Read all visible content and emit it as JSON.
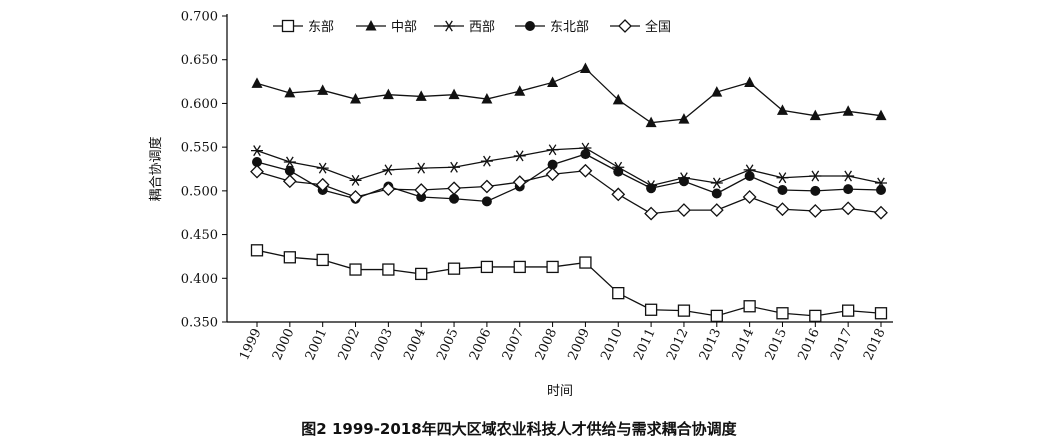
{
  "chart_data": {
    "type": "line",
    "title": "",
    "caption": "图2 1999-2018年四大区域农业科技人才供给与需求耦合协调度",
    "xlabel": "时间",
    "ylabel": "耦合协调度",
    "ylim": [
      0.35,
      0.7
    ],
    "yticks": [
      "0.350",
      "0.400",
      "0.450",
      "0.500",
      "0.550",
      "0.600",
      "0.650",
      "0.700"
    ],
    "categories": [
      "1999",
      "2000",
      "2001",
      "2002",
      "2003",
      "2004",
      "2005",
      "2006",
      "2007",
      "2008",
      "2009",
      "2010",
      "2011",
      "2012",
      "2013",
      "2014",
      "2015",
      "2016",
      "2017",
      "2018"
    ],
    "legend_position": "top",
    "grid": false,
    "series": [
      {
        "name": "东部",
        "marker": "square-open",
        "values": [
          0.432,
          0.424,
          0.421,
          0.41,
          0.41,
          0.405,
          0.411,
          0.413,
          0.413,
          0.413,
          0.418,
          0.383,
          0.364,
          0.363,
          0.357,
          0.368,
          0.36,
          0.357,
          0.363,
          0.36
        ]
      },
      {
        "name": "中部",
        "marker": "triangle-filled",
        "values": [
          0.623,
          0.612,
          0.615,
          0.605,
          0.61,
          0.608,
          0.61,
          0.605,
          0.614,
          0.624,
          0.64,
          0.604,
          0.578,
          0.582,
          0.613,
          0.624,
          0.592,
          0.586,
          0.591,
          0.586
        ]
      },
      {
        "name": "西部",
        "marker": "asterisk",
        "values": [
          0.546,
          0.533,
          0.526,
          0.512,
          0.524,
          0.526,
          0.527,
          0.534,
          0.54,
          0.547,
          0.549,
          0.527,
          0.506,
          0.515,
          0.509,
          0.524,
          0.515,
          0.517,
          0.517,
          0.509
        ]
      },
      {
        "name": "东北部",
        "marker": "circle-filled",
        "values": [
          0.533,
          0.523,
          0.501,
          0.491,
          0.505,
          0.493,
          0.491,
          0.488,
          0.505,
          0.53,
          0.542,
          0.522,
          0.503,
          0.511,
          0.497,
          0.517,
          0.501,
          0.5,
          0.502,
          0.501
        ]
      },
      {
        "name": "全国",
        "marker": "diamond-open",
        "values": [
          0.522,
          0.511,
          0.507,
          0.493,
          0.502,
          0.501,
          0.503,
          0.505,
          0.51,
          0.519,
          0.523,
          0.496,
          0.474,
          0.478,
          0.478,
          0.493,
          0.479,
          0.477,
          0.48,
          0.475
        ]
      }
    ]
  }
}
